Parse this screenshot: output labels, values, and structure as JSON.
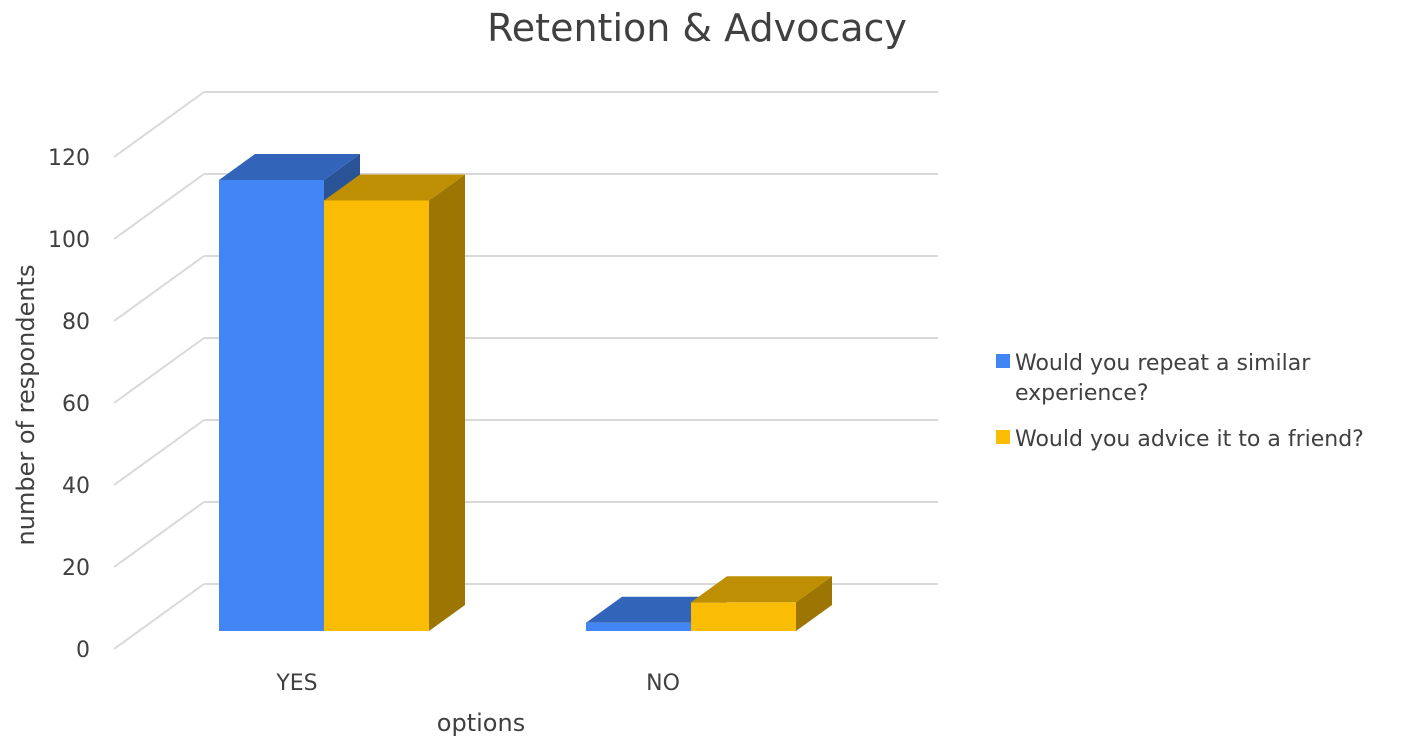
{
  "chart_data": {
    "type": "bar",
    "title": "Retention & Advocacy",
    "xlabel": "options",
    "ylabel": "number of respondents",
    "categories": [
      "YES",
      "NO"
    ],
    "series": [
      {
        "name": "Would you repeat a similar experience?",
        "values": [
          110,
          2
        ],
        "color": "#4285F4"
      },
      {
        "name": "Would you advice it to a friend?",
        "values": [
          105,
          7
        ],
        "color": "#FBBC04"
      }
    ],
    "ylim": [
      0,
      120
    ],
    "yticks": [
      0,
      20,
      40,
      60,
      80,
      100,
      120
    ],
    "grid": true,
    "legend": "right",
    "three_d": true
  }
}
